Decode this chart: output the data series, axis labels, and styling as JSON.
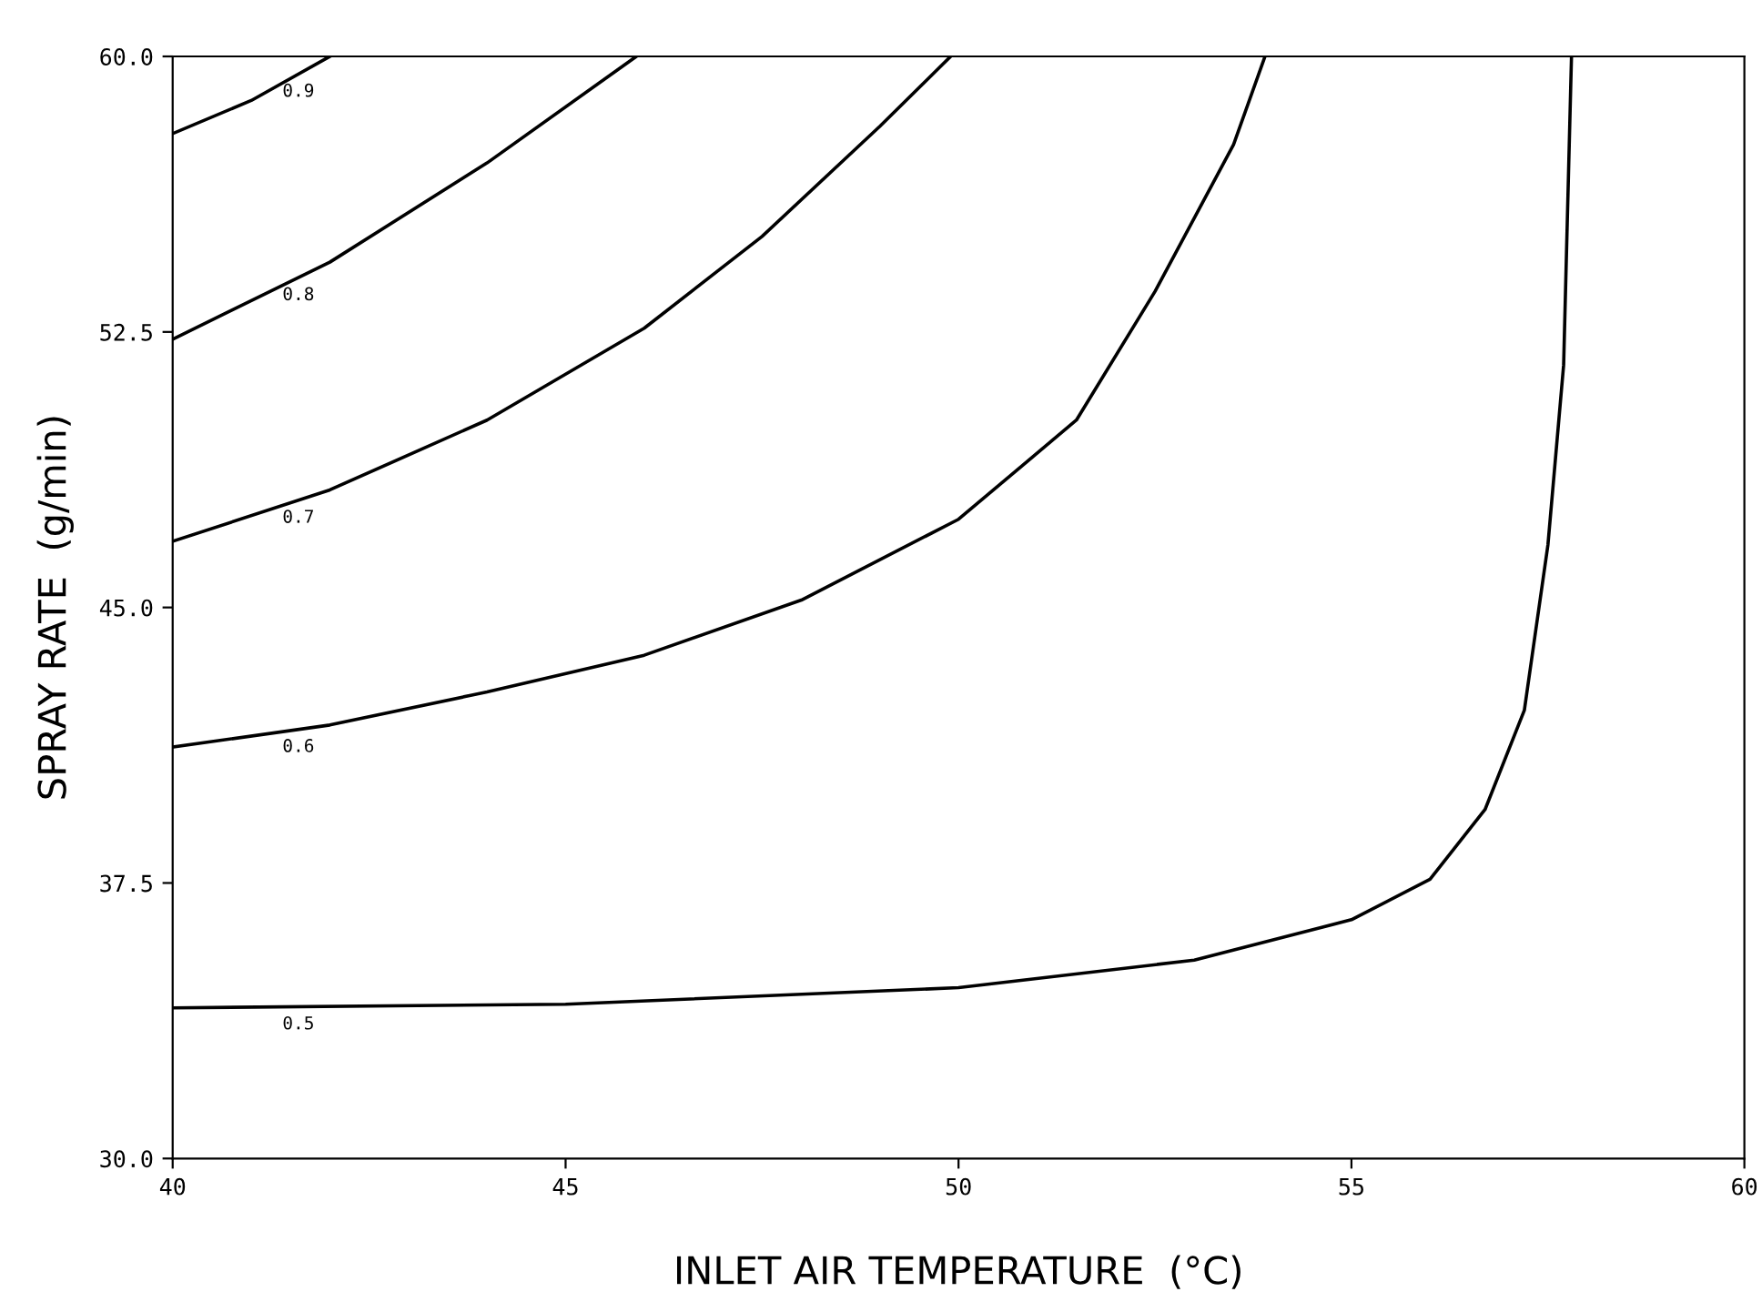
{
  "chart_data": {
    "type": "line",
    "xlabel": "INLET AIR TEMPERATURE  (°C)",
    "ylabel": "SPRAY RATE  (g/min)",
    "xlim": [
      40,
      60
    ],
    "ylim": [
      30,
      60
    ],
    "xticks": [
      40,
      45,
      50,
      55,
      60
    ],
    "yticks": [
      {
        "value": 30,
        "label": "30.0"
      },
      {
        "value": 37.5,
        "label": "37.5"
      },
      {
        "value": 45,
        "label": "45.0"
      },
      {
        "value": 52.5,
        "label": "52.5"
      },
      {
        "value": 60,
        "label": "60.0"
      }
    ],
    "grid": false,
    "legend": false,
    "line_style": "solid",
    "marker": "none",
    "series": [
      {
        "name": "0.5",
        "color": "#000000",
        "x": [
          40,
          45,
          50,
          53,
          55,
          56,
          56.7,
          57.2,
          57.5,
          57.7,
          57.8
        ],
        "values": [
          34.1,
          34.2,
          34.65,
          35.4,
          36.5,
          37.6,
          39.5,
          42.2,
          46.7,
          51.6,
          60
        ]
      },
      {
        "name": "0.6",
        "color": "#000000",
        "x": [
          40,
          42,
          44,
          46,
          48,
          50,
          51.5,
          52.5,
          53.5,
          53.9
        ],
        "values": [
          41.2,
          41.8,
          42.7,
          43.7,
          45.2,
          47.4,
          50.1,
          53.6,
          57.6,
          60
        ]
      },
      {
        "name": "0.7",
        "color": "#000000",
        "x": [
          40,
          42,
          44,
          46,
          47.5,
          49,
          49.9
        ],
        "values": [
          46.8,
          48.2,
          50.1,
          52.6,
          55.1,
          58.1,
          60
        ]
      },
      {
        "name": "0.8",
        "color": "#000000",
        "x": [
          40,
          42,
          44,
          45.9
        ],
        "values": [
          52.3,
          54.4,
          57.1,
          60
        ]
      },
      {
        "name": "0.9",
        "color": "#000000",
        "x": [
          40,
          41,
          42
        ],
        "values": [
          57.9,
          58.8,
          60
        ]
      }
    ]
  }
}
